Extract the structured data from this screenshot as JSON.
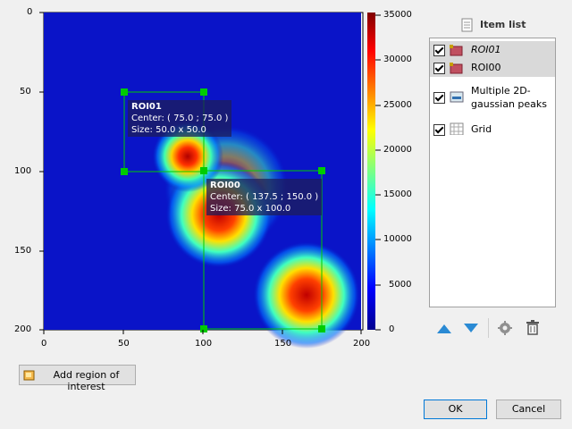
{
  "plot": {
    "x_ticks": [
      "0",
      "50",
      "100",
      "150",
      "200"
    ],
    "y_ticks": [
      "0",
      "50",
      "100",
      "150",
      "200"
    ],
    "colorbar_ticks": [
      "35000",
      "30000",
      "25000",
      "20000",
      "15000",
      "10000",
      "5000",
      "0"
    ]
  },
  "rois": [
    {
      "name": "ROI01",
      "center": "Center: ( 75.0 ; 75.0 )",
      "size": "Size: 50.0 x 50.0"
    },
    {
      "name": "ROI00",
      "center": "Center: ( 137.5 ; 150.0 )",
      "size": "Size: 75.0 x 100.0"
    }
  ],
  "item_list": {
    "title": "Item list",
    "items": [
      {
        "label": "ROI01",
        "italic": true,
        "checked": true,
        "icon": "roi-icon"
      },
      {
        "label": "ROI00",
        "checked": true,
        "icon": "roi-icon"
      },
      {
        "label": "Multiple 2D-gaussian peaks",
        "checked": true,
        "icon": "image-icon"
      },
      {
        "label": "Grid",
        "checked": true,
        "icon": "grid-icon"
      }
    ]
  },
  "buttons": {
    "add_roi": "Add region of interest",
    "ok": "OK",
    "cancel": "Cancel"
  },
  "colors": {
    "roi": "#00cc00",
    "accent": "#0078d7"
  }
}
